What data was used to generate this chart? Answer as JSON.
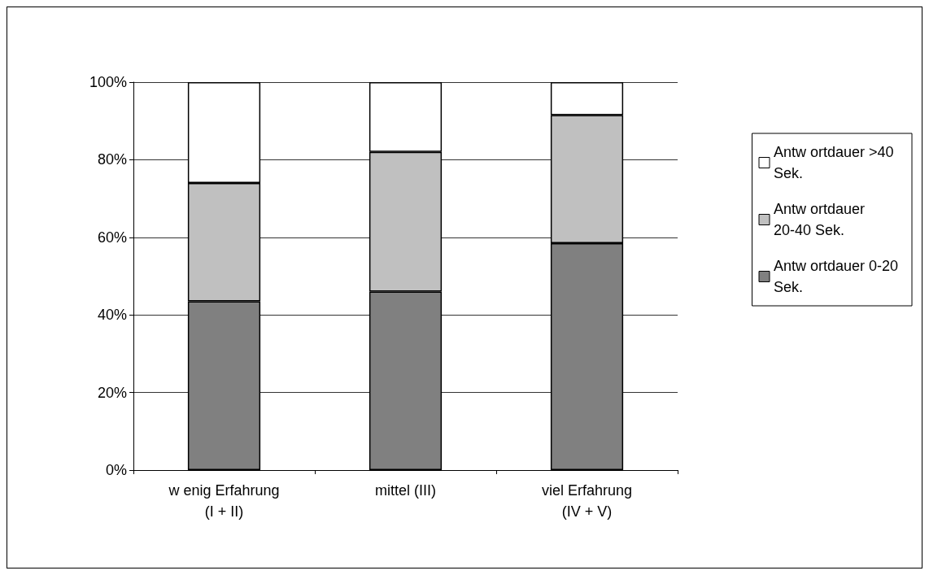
{
  "chart_data": {
    "type": "bar",
    "stacked": true,
    "categories": [
      "w enig Erfahrung\n(I + II)",
      "mittel (III)",
      "viel Erfahrung\n(IV + V)"
    ],
    "series": [
      {
        "name": "Antw ortdauer 0-20 Sek.",
        "color": "#808080",
        "values": [
          43.5,
          46,
          58.5
        ]
      },
      {
        "name": "Antw ortdauer 20-40 Sek.",
        "color": "#c0c0c0",
        "values": [
          30.5,
          36,
          33
        ]
      },
      {
        "name": "Antw ortdauer >40 Sek.",
        "color": "#ffffff",
        "values": [
          26,
          18,
          8.5
        ]
      }
    ],
    "ylim": [
      0,
      100
    ],
    "yticks": [
      {
        "value": 0,
        "label": "0%"
      },
      {
        "value": 20,
        "label": "20%"
      },
      {
        "value": 40,
        "label": "40%"
      },
      {
        "value": 60,
        "label": "60%"
      },
      {
        "value": 80,
        "label": "80%"
      },
      {
        "value": 100,
        "label": "100%"
      }
    ],
    "grid": "y",
    "legend": "right"
  }
}
